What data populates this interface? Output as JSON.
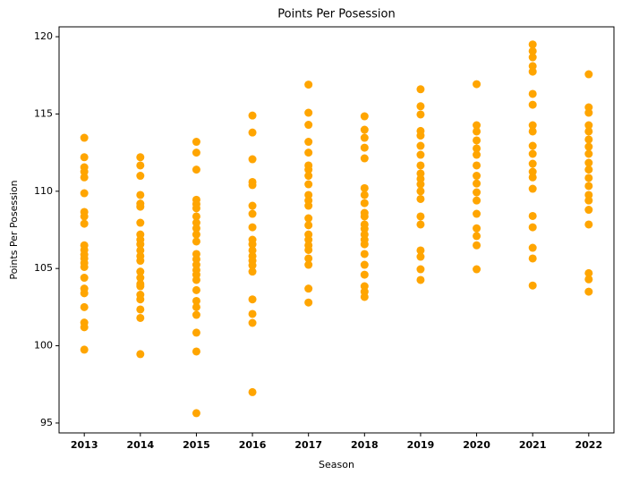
{
  "chart_data": {
    "type": "scatter",
    "title": "Points Per Posession",
    "x_label": "Season",
    "y_label": "Points Per Posession",
    "color": "#ffa500",
    "xlim": [
      2012.55,
      2022.45
    ],
    "xticks": [
      2013,
      2014,
      2015,
      2016,
      2017,
      2018,
      2019,
      2020,
      2021,
      2022
    ],
    "ylim": [
      94.36,
      120.64
    ],
    "yticks": [
      95,
      100,
      105,
      110,
      115,
      120
    ],
    "groups": [
      {
        "x": 2013,
        "values": [
          113.46,
          112.2,
          111.55,
          111.26,
          110.9,
          109.87,
          108.66,
          108.37,
          107.9,
          106.5,
          106.2,
          105.9,
          105.65,
          105.36,
          105.1,
          104.4,
          103.7,
          103.4,
          102.5,
          101.5,
          101.2,
          99.75
        ]
      },
      {
        "x": 2014,
        "values": [
          112.2,
          111.67,
          111.0,
          109.76,
          109.2,
          109.0,
          107.96,
          107.2,
          106.86,
          106.57,
          106.17,
          105.8,
          105.5,
          104.8,
          104.4,
          104.0,
          103.85,
          103.3,
          103.0,
          102.35,
          101.8,
          99.46
        ]
      },
      {
        "x": 2015,
        "values": [
          113.2,
          112.5,
          111.4,
          109.45,
          109.17,
          108.9,
          108.37,
          107.96,
          107.6,
          107.2,
          106.75,
          105.94,
          105.6,
          105.24,
          104.9,
          104.6,
          104.26,
          103.6,
          102.9,
          102.5,
          102.0,
          100.85,
          99.63,
          95.64
        ]
      },
      {
        "x": 2016,
        "values": [
          114.9,
          113.8,
          112.07,
          110.6,
          110.4,
          109.06,
          108.54,
          107.67,
          106.86,
          106.57,
          106.17,
          105.8,
          105.5,
          105.2,
          104.8,
          103.0,
          102.06,
          101.48,
          97.0
        ]
      },
      {
        "x": 2017,
        "values": [
          116.9,
          115.08,
          114.3,
          113.2,
          112.5,
          111.67,
          111.4,
          111.0,
          110.45,
          109.76,
          109.4,
          109.06,
          108.25,
          107.8,
          107.2,
          106.86,
          106.5,
          106.2,
          105.65,
          105.24,
          103.7,
          102.8
        ]
      },
      {
        "x": 2018,
        "values": [
          114.85,
          113.98,
          113.46,
          112.82,
          112.13,
          110.2,
          109.76,
          109.23,
          108.6,
          108.37,
          107.85,
          107.57,
          107.2,
          106.86,
          106.57,
          105.94,
          105.24,
          104.6,
          103.85,
          103.5,
          103.16
        ]
      },
      {
        "x": 2019,
        "values": [
          116.6,
          115.5,
          114.97,
          113.9,
          113.6,
          112.94,
          112.36,
          111.67,
          111.15,
          110.8,
          110.45,
          110.0,
          109.5,
          108.37,
          107.85,
          106.17,
          105.76,
          104.95,
          104.26
        ]
      },
      {
        "x": 2020,
        "values": [
          116.93,
          114.27,
          113.87,
          113.29,
          112.77,
          112.36,
          111.67,
          111.0,
          110.5,
          109.93,
          109.4,
          108.54,
          107.6,
          107.1,
          106.5,
          104.95
        ]
      },
      {
        "x": 2021,
        "values": [
          119.5,
          119.07,
          118.67,
          118.1,
          117.74,
          116.3,
          115.6,
          114.27,
          113.87,
          112.94,
          112.42,
          111.78,
          111.26,
          110.9,
          110.16,
          108.4,
          107.67,
          106.34,
          105.65,
          103.9
        ]
      },
      {
        "x": 2022,
        "values": [
          117.57,
          115.43,
          115.08,
          114.27,
          113.87,
          113.35,
          112.88,
          112.42,
          111.84,
          111.4,
          110.86,
          110.34,
          109.76,
          109.4,
          108.8,
          107.85,
          104.7,
          104.3,
          103.5
        ]
      }
    ]
  }
}
